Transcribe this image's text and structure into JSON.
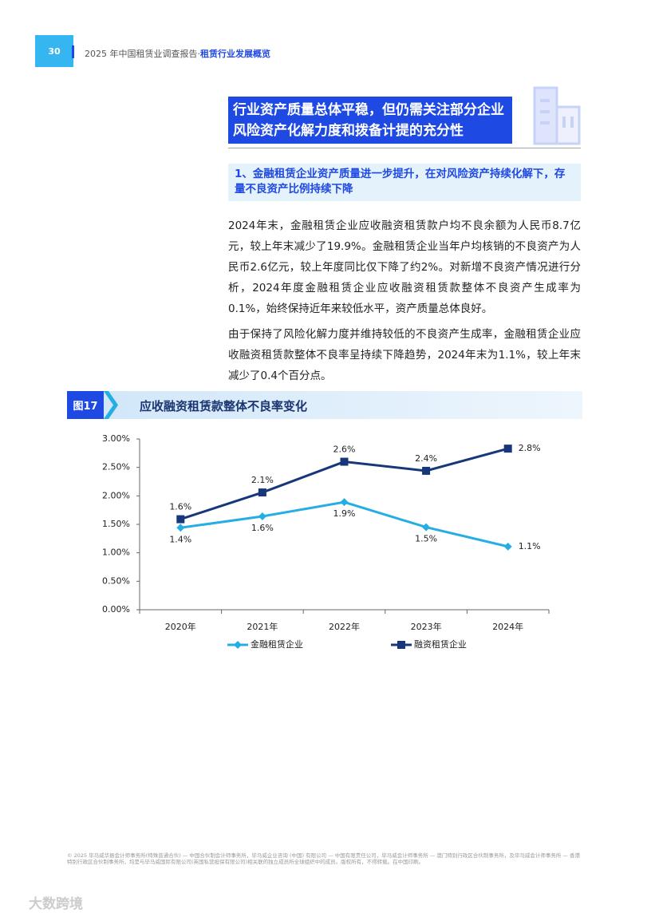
{
  "header": {
    "page_number": "30",
    "report": "2025 年中国租赁业调查报告·",
    "section": "租赁行业发展概览"
  },
  "section_title": "行业资产质量总体平稳，但仍需关注部分企业风险资产化解力度和拨备计提的充分性",
  "subheading": "1、金融租赁企业资产质量进一步提升，在对风险资产持续化解下，存量不良资产比例持续下降",
  "paragraphs": [
    "2024年末，金融租赁企业应收融资租赁款户均不良余额为人民币8.7亿元，较上年末减少了19.9%。金融租赁企业当年户均核销的不良资产为人民币2.6亿元，较上年度同比仅下降了约2%。对新增不良资产情况进行分析，2024年度金融租赁企业应收融资租赁款整体不良资产生成率为0.1%，始终保持近年来较低水平，资产质量总体良好。",
    "由于保持了风险化解力度并维持较低的不良资产生成率，金融租赁企业应收融资租赁款整体不良率呈持续下降趋势，2024年末为1.1%，较上年末减少了0.4个百分点。"
  ],
  "figure": {
    "label": "图17",
    "title": "应收融资租赁款整体不良率变化"
  },
  "chart_data": {
    "type": "line",
    "categories": [
      "2020年",
      "2021年",
      "2022年",
      "2023年",
      "2024年"
    ],
    "series": [
      {
        "name": "金融租赁企业",
        "color": "#25aee4",
        "marker": "diamond",
        "values": [
          1.44,
          1.64,
          1.89,
          1.45,
          1.11
        ],
        "value_labels": [
          "1.4%",
          "1.6%",
          "1.9%",
          "1.5%",
          "1.1%"
        ]
      },
      {
        "name": "融资租赁企业",
        "color": "#17377a",
        "marker": "square",
        "values": [
          1.59,
          2.06,
          2.6,
          2.44,
          2.83
        ],
        "value_labels": [
          "1.6%",
          "2.1%",
          "2.6%",
          "2.4%",
          "2.8%"
        ]
      }
    ],
    "ylim": [
      0,
      3
    ],
    "yticks": [
      {
        "value": 0,
        "label": "0.00%"
      },
      {
        "value": 0.5,
        "label": "0.50%"
      },
      {
        "value": 1,
        "label": "1.00%"
      },
      {
        "value": 1.5,
        "label": "1.50%"
      },
      {
        "value": 2,
        "label": "2.00%"
      },
      {
        "value": 2.5,
        "label": "2.50%"
      },
      {
        "value": 3,
        "label": "3.00%"
      }
    ],
    "legend": "bottom"
  },
  "footer": "© 2025 毕马威华振会计师事务所(特殊普通合伙) — 中国合伙制会计师事务所，毕马威企业咨询 (中国) 有限公司 — 中国有限责任公司，毕马威会计师事务所 — 澳门特别行政区合伙制事务所，及毕马威会计师事务所 — 香港特别行政区合伙制事务所，均是与毕马威国际有限公司(英国私营担保有限公司)相关联的独立成员所全球组织中的成员。版权所有，不得转载。在中国印刷。",
  "watermark": "大数跨境"
}
